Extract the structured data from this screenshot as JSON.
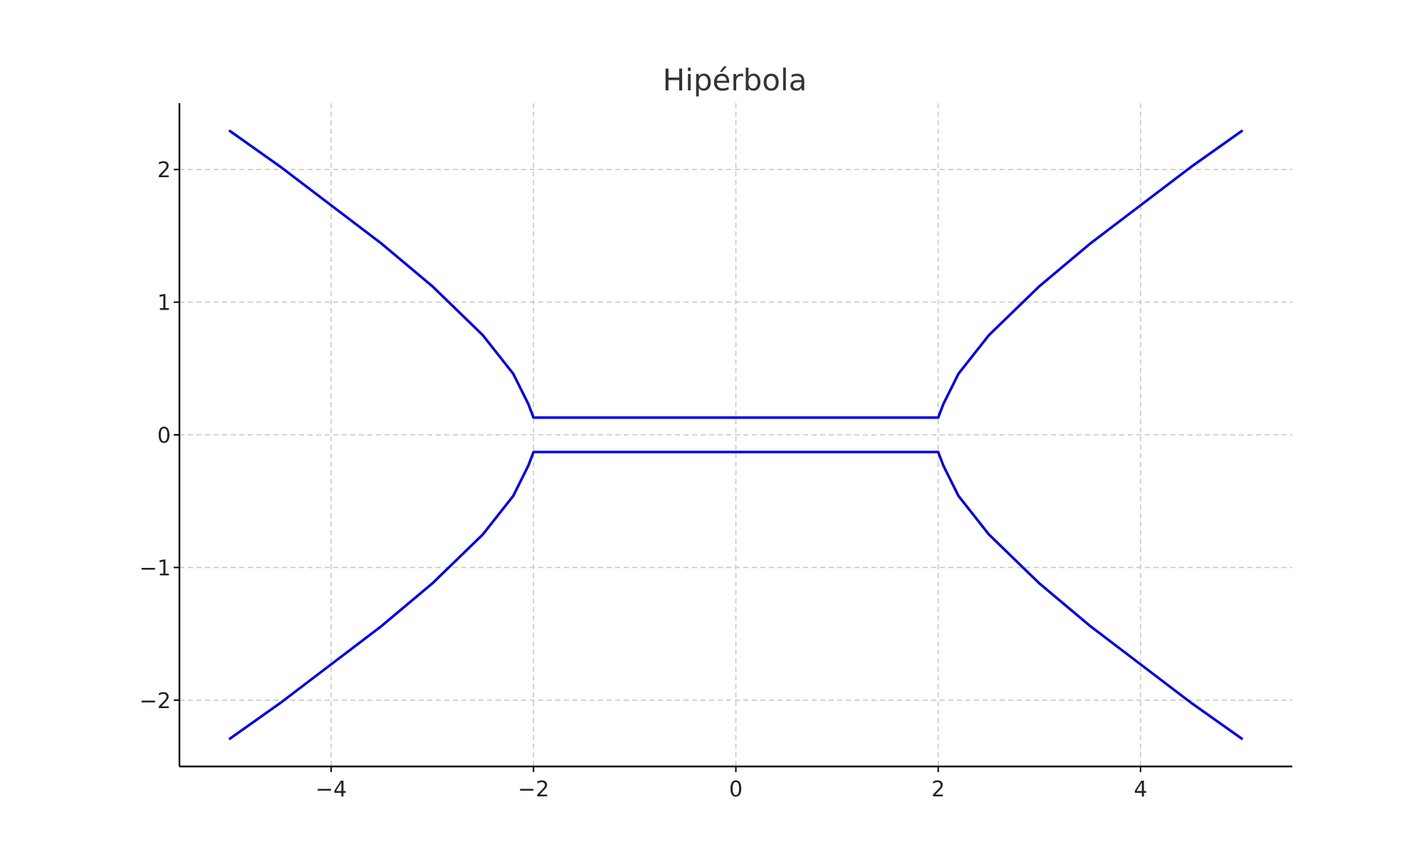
{
  "chart_data": {
    "type": "line",
    "title": "Hipérbola",
    "xlabel": "",
    "ylabel": "",
    "xlim": [
      -5.5,
      5.5
    ],
    "ylim": [
      -2.5,
      2.5
    ],
    "xticks": [
      -4,
      -2,
      0,
      2,
      4
    ],
    "yticks": [
      -2,
      -1,
      0,
      1,
      2
    ],
    "xtick_labels": [
      "−4",
      "−2",
      "0",
      "2",
      "4"
    ],
    "ytick_labels": [
      "−2",
      "−1",
      "0",
      "1",
      "2"
    ],
    "grid": true,
    "legend": false,
    "line_color": "#0000ee",
    "series": [
      {
        "x": [
          -5,
          -4.5,
          -4,
          -3.5,
          -3,
          -2.5,
          -2.2,
          -2.05,
          -2,
          2,
          2.05,
          2.2,
          2.5,
          3,
          3.5,
          4,
          4.5,
          5
        ],
        "y": [
          2.29,
          2.02,
          1.73,
          1.44,
          1.12,
          0.75,
          0.46,
          0.23,
          0.13,
          0.13,
          0.23,
          0.46,
          0.75,
          1.12,
          1.44,
          1.73,
          2.02,
          2.29
        ]
      },
      {
        "x": [
          -5,
          -4.5,
          -4,
          -3.5,
          -3,
          -2.5,
          -2.2,
          -2.05,
          -2,
          2,
          2.05,
          2.2,
          2.5,
          3,
          3.5,
          4,
          4.5,
          5
        ],
        "y": [
          -2.29,
          -2.02,
          -1.73,
          -1.44,
          -1.12,
          -0.75,
          -0.46,
          -0.23,
          -0.13,
          -0.13,
          -0.23,
          -0.46,
          -0.75,
          -1.12,
          -1.44,
          -1.73,
          -2.02,
          -2.29
        ]
      }
    ]
  }
}
